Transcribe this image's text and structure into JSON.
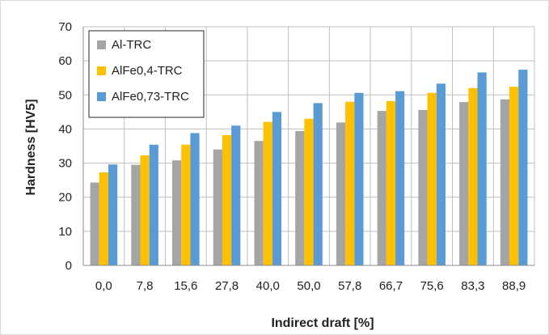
{
  "chart_data": {
    "type": "bar",
    "title": "",
    "xlabel": "Indirect draft [%]",
    "ylabel": "Hardness [HV5]",
    "categories": [
      "0,0",
      "7,8",
      "15,6",
      "27,8",
      "40,0",
      "50,0",
      "57,8",
      "66,7",
      "75,6",
      "83,3",
      "88,9"
    ],
    "ylim": [
      0,
      70
    ],
    "yticks": [
      0,
      10,
      20,
      30,
      40,
      50,
      60,
      70
    ],
    "grid": true,
    "legend_position": "top-left",
    "series": [
      {
        "name": "Al-TRC",
        "color": "#a5a5a5",
        "values": [
          24.3,
          29.5,
          30.8,
          34.0,
          36.5,
          39.4,
          41.9,
          45.3,
          45.6,
          47.9,
          48.7
        ]
      },
      {
        "name": "AlFe0,4-TRC",
        "color": "#ffc000",
        "values": [
          27.3,
          32.3,
          35.4,
          38.2,
          42.1,
          43.0,
          48.0,
          48.2,
          50.6,
          52.0,
          52.4
        ]
      },
      {
        "name": "AlFe0,73-TRC",
        "color": "#5b9bd5",
        "values": [
          29.6,
          35.4,
          38.8,
          41.0,
          45.0,
          47.6,
          50.6,
          51.1,
          53.3,
          56.6,
          57.4
        ]
      }
    ]
  }
}
